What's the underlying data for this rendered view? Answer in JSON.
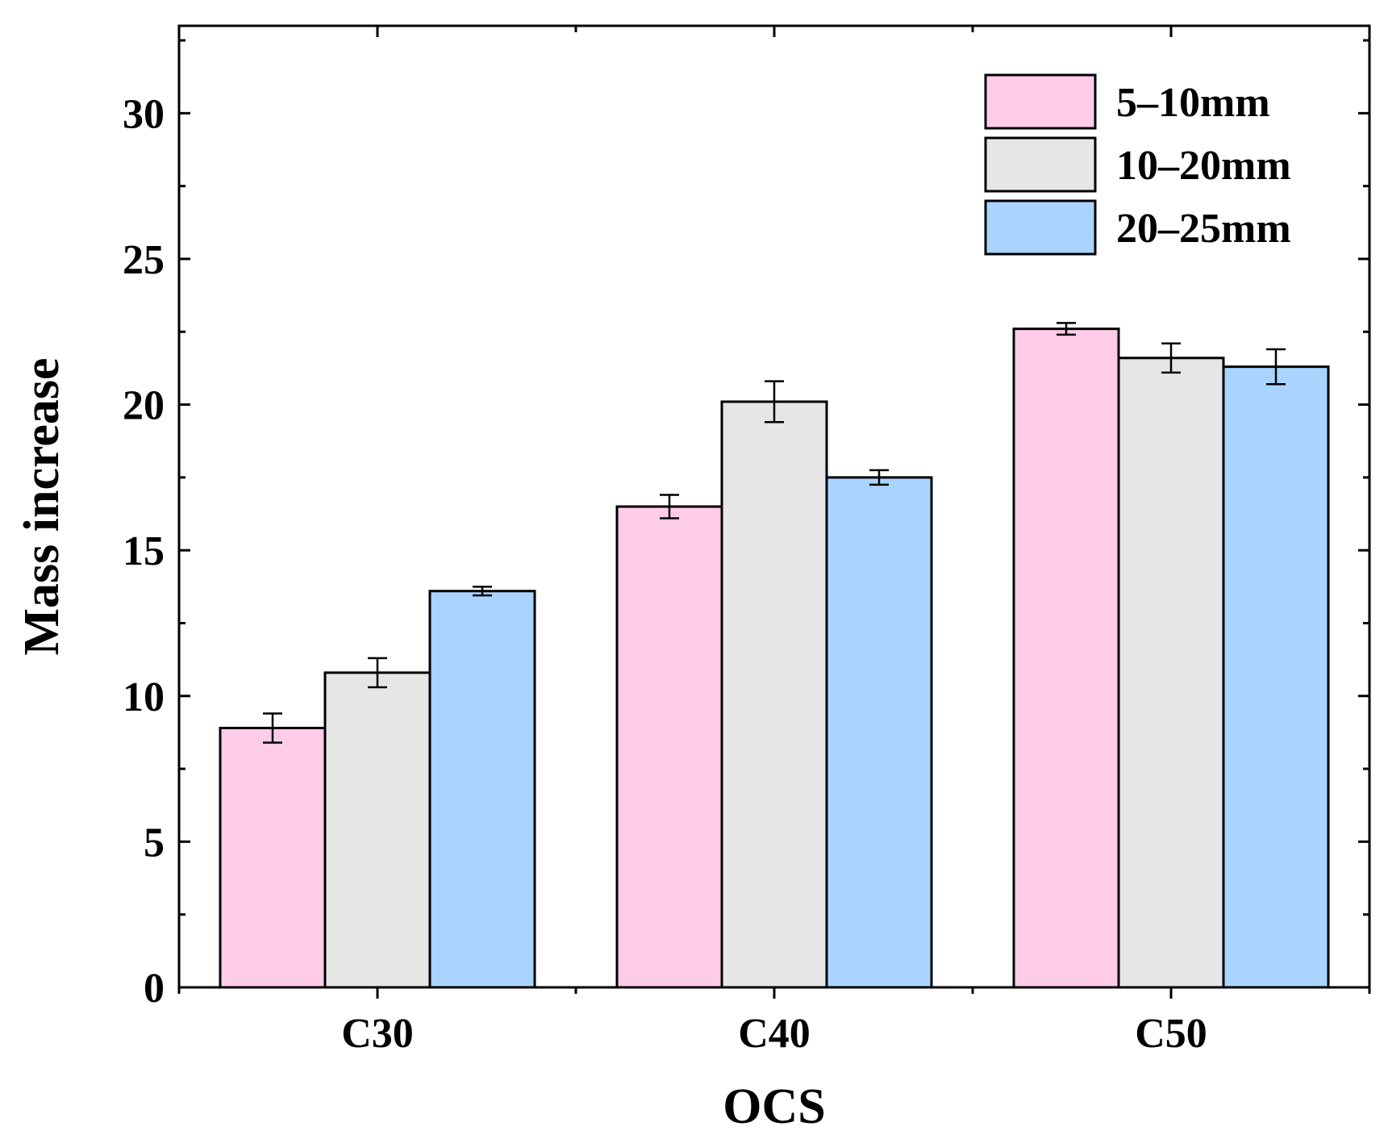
{
  "chart_data": {
    "type": "bar",
    "title": "",
    "xlabel": "OCS",
    "ylabel": "Mass increase",
    "categories": [
      "C30",
      "C40",
      "C50"
    ],
    "ylim": [
      0,
      33
    ],
    "yticks": [
      0,
      5,
      10,
      15,
      20,
      25,
      30
    ],
    "ytick_labels": [
      "0",
      "5",
      "10",
      "15",
      "20",
      "25",
      "30"
    ],
    "grid": false,
    "legend_position": "top-right",
    "series": [
      {
        "name": "5–10mm",
        "color": "#ffcce8",
        "values": [
          8.9,
          16.5,
          22.6
        ],
        "errors": [
          0.5,
          0.4,
          0.2
        ]
      },
      {
        "name": "10–20mm",
        "color": "#e6e6e6",
        "values": [
          10.8,
          20.1,
          21.6
        ],
        "errors": [
          0.5,
          0.7,
          0.5
        ]
      },
      {
        "name": "20–25mm",
        "color": "#aad4ff",
        "values": [
          13.6,
          17.5,
          21.3
        ],
        "errors": [
          0.15,
          0.25,
          0.6
        ]
      }
    ]
  }
}
